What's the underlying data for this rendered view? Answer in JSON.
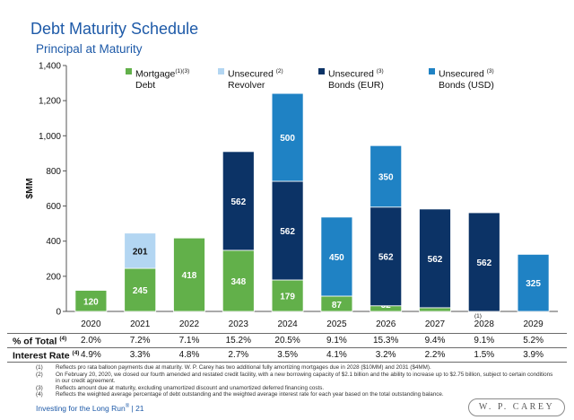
{
  "header": {
    "title": "Debt Maturity Schedule",
    "subtitle": "Principal at Maturity"
  },
  "chart_data": {
    "type": "bar",
    "stacked": true,
    "categories": [
      "2020",
      "2021",
      "2022",
      "2023",
      "2024",
      "2025",
      "2026",
      "2027",
      "2028",
      "2029"
    ],
    "category_note_2028": "(1)",
    "ylabel": "$MM",
    "ylim": [
      0,
      1400
    ],
    "yticks": [
      "0",
      "200",
      "400",
      "600",
      "800",
      "1,000",
      "1,200",
      "1,400"
    ],
    "grid": false,
    "legend_position": "top",
    "series": [
      {
        "name": "Mortgage Debt",
        "name_line1": "Mortgage",
        "name_line2": "Debt",
        "note": "(1)(3)",
        "color": "#62b04a",
        "values": [
          120,
          245,
          418,
          348,
          179,
          87,
          32,
          21,
          0,
          0
        ]
      },
      {
        "name": "Unsecured Revolver",
        "name_line1": "Unsecured",
        "name_line2": "Revolver",
        "note": "(2)",
        "color": "#b3d6f2",
        "values": [
          0,
          201,
          0,
          0,
          0,
          0,
          0,
          0,
          0,
          0
        ]
      },
      {
        "name": "Unsecured Bonds (EUR)",
        "name_line1": "Unsecured",
        "name_line2": "Bonds (EUR)",
        "note": "(3)",
        "color": "#0c3366",
        "values": [
          0,
          0,
          0,
          562,
          562,
          0,
          562,
          562,
          562,
          0
        ]
      },
      {
        "name": "Unsecured Bonds (USD)",
        "name_line1": "Unsecured",
        "name_line2": "Bonds (USD)",
        "note": "(3)",
        "color": "#1f82c4",
        "values": [
          0,
          0,
          0,
          0,
          500,
          450,
          350,
          0,
          0,
          325
        ]
      }
    ]
  },
  "table": {
    "pct_total": {
      "label": "% of Total",
      "note": "(4)",
      "values": [
        "2.0%",
        "7.2%",
        "7.1%",
        "15.2%",
        "20.5%",
        "9.1%",
        "15.3%",
        "9.4%",
        "9.1%",
        "5.2%"
      ]
    },
    "interest_rate": {
      "label": "Interest Rate",
      "note": "(4)",
      "values": [
        "4.9%",
        "3.3%",
        "4.8%",
        "2.7%",
        "3.5%",
        "4.1%",
        "3.2%",
        "2.2%",
        "1.5%",
        "3.9%"
      ]
    }
  },
  "footnotes": [
    {
      "num": "(1)",
      "text": "Reflects pro rata balloon payments due at maturity. W. P. Carey has two additional fully amortizing mortgages due in 2028 ($10MM) and 2031 ($4MM)."
    },
    {
      "num": "(2)",
      "text": "On February 20, 2020, we closed our fourth amended and restated credit facility, with a new borrowing capacity of $2.1 billion and the ability to increase up to $2.75 billion, subject to certain conditions in our credit agreement."
    },
    {
      "num": "(3)",
      "text": "Reflects amount due at maturity, excluding unamortized discount and unamortized deferred financing costs."
    },
    {
      "num": "(4)",
      "text": "Reflects the weighted average percentage of debt outstanding and the weighted average interest rate for each year based on the total outstanding balance."
    }
  ],
  "footer": {
    "tagline": "Investing for the Long Run",
    "reg": "®",
    "page": " | 21",
    "logo": "W. P. CAREY"
  }
}
